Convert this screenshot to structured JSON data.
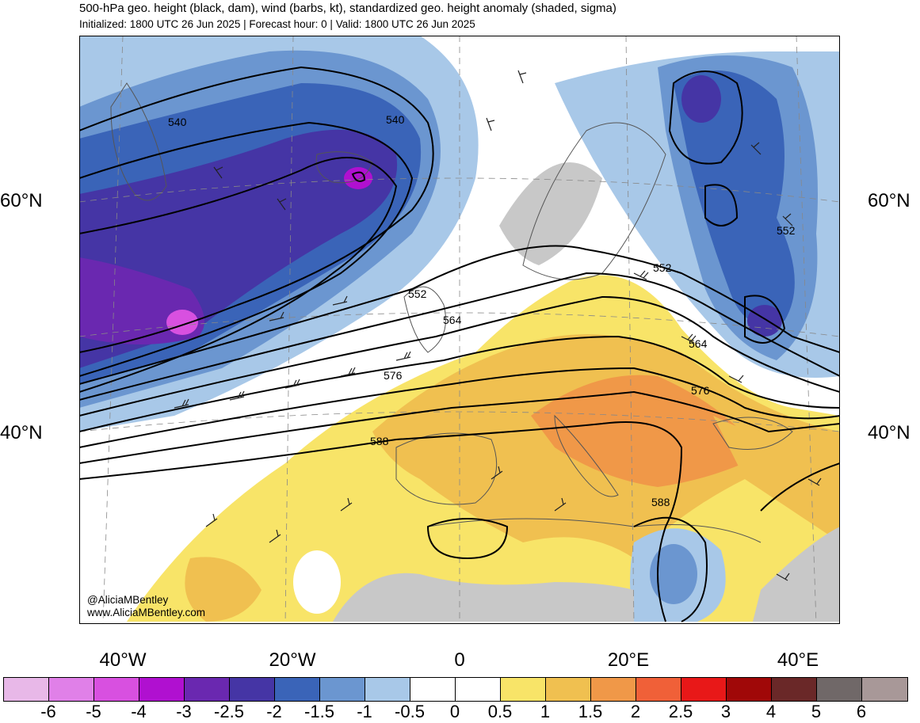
{
  "header": {
    "title": "500-hPa geo. height (black, dam), wind (barbs, kt), standardized geo. height anomaly (shaded, sigma)",
    "subtitle": "Initialized: 1800 UTC 26 Jun 2025 | Forecast hour: 0 | Valid: 1800 UTC 26 Jun 2025"
  },
  "map": {
    "lat_labels": {
      "left_60": "60°N",
      "right_60": "60°N",
      "left_40": "40°N",
      "right_40": "40°N"
    },
    "lon_labels": [
      "40°W",
      "20°W",
      "0",
      "20°E",
      "40°E"
    ],
    "contour_labels": [
      "540",
      "540",
      "552",
      "552",
      "552",
      "564",
      "564",
      "576",
      "576",
      "588",
      "588"
    ],
    "credits": {
      "handle": "@AliciaMBentley",
      "website": "www.AliciaMBentley.com"
    }
  },
  "colorbar": {
    "ticks": [
      "-6",
      "-5",
      "-4",
      "-3",
      "-2.5",
      "-2",
      "-1.5",
      "-1",
      "-0.5",
      "0",
      "0.5",
      "1",
      "1.5",
      "2",
      "2.5",
      "3",
      "4",
      "5",
      "6"
    ],
    "colors": [
      "#e8b8e8",
      "#e080e8",
      "#d850e0",
      "#b010d0",
      "#6a28b0",
      "#4535a5",
      "#3a64b8",
      "#6b96d0",
      "#a8c8e8",
      "#ffffff",
      "#ffffff",
      "#f8e468",
      "#f0c050",
      "#f09848",
      "#f06038",
      "#e81818",
      "#a00808",
      "#6a2828",
      "#706868",
      "#a89898"
    ]
  }
}
